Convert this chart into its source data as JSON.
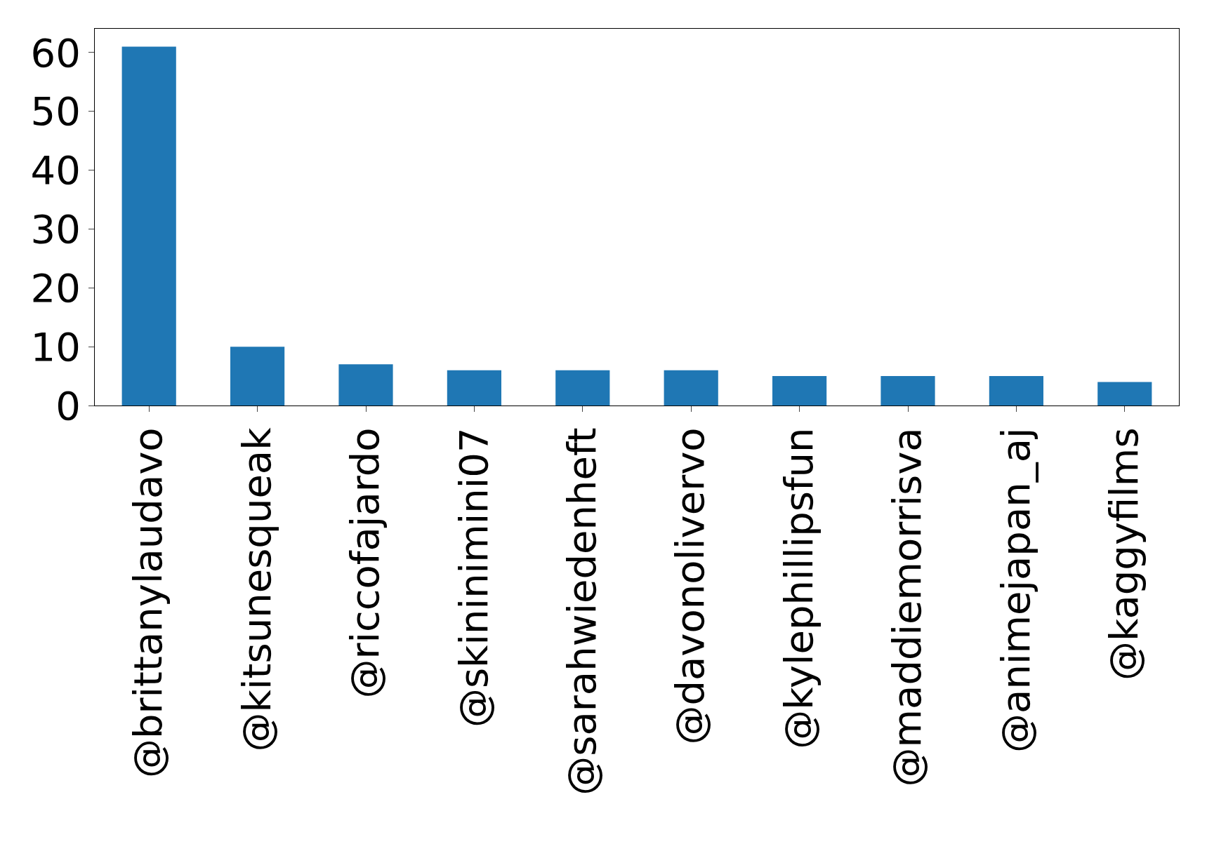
{
  "chart_data": {
    "type": "bar",
    "categories": [
      "@brittanylaudavo",
      "@kitsunesqueak",
      "@riccofajardo",
      "@skininimini07",
      "@sarahwiedenheft",
      "@davonolivervo",
      "@kylephillipsfun",
      "@maddiemorrisva",
      "@animejapan_aj",
      "@kaggyfilms"
    ],
    "values": [
      61,
      10,
      7,
      6,
      6,
      6,
      5,
      5,
      5,
      4
    ],
    "color": "#1f77b4",
    "ylim": [
      0,
      64.05
    ],
    "yticks": [
      0,
      10,
      20,
      30,
      40,
      50,
      60
    ]
  }
}
